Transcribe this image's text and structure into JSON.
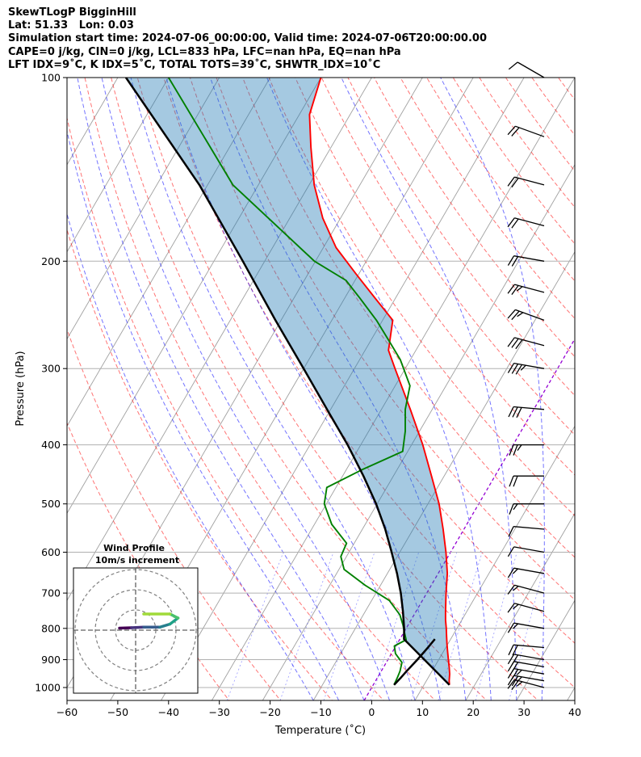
{
  "header": {
    "title": "SkewTLogP BigginHill",
    "location": "Lat: 51.33   Lon: 0.03",
    "times": "Simulation start time: 2024-07-06_00:00:00, Valid time: 2024-07-06T20:00:00.00",
    "indices1": "CAPE=0 j/kg, CIN=0 j/kg, LCL=833 hPa, LFC=nan hPa, EQ=nan hPa",
    "indices2": "LFT IDX=9˚C, K IDX=5˚C, TOTAL TOTS=39˚C, SHWTR_IDX=10˚C"
  },
  "chart_data": [
    {
      "type": "line",
      "title": "SkewTLogP BigginHill",
      "xlabel": "Temperature (˚C)",
      "ylabel": "Pressure (hPa)",
      "xlim": [
        -60,
        40
      ],
      "ylim": [
        1050,
        100
      ],
      "yscale": "log",
      "skew_deg_per_decade": 70,
      "xticks": [
        -60,
        -50,
        -40,
        -30,
        -20,
        -10,
        0,
        10,
        20,
        30,
        40
      ],
      "xtick_labels": [
        "−60",
        "−50",
        "−40",
        "−30",
        "−20",
        "−10",
        "0",
        "10",
        "20",
        "30",
        "40"
      ],
      "yticks": [
        1000,
        900,
        800,
        700,
        600,
        500,
        400,
        300,
        200,
        100
      ],
      "ytick_labels": [
        "1000",
        "900",
        "800",
        "700",
        "600",
        "500",
        "400",
        "300",
        "200",
        "100"
      ],
      "grid": true,
      "colors": {
        "temperature": "#ff0000",
        "dewpoint": "#008000",
        "parcel": "#000000",
        "cin_cape_fill": "#1f77b4",
        "dry_adiabat": "#ff0000",
        "moist_adiabat": "#0000ff",
        "mixing_ratio": "#0000ff",
        "isotherm_zero": "#9400d3",
        "skewed_isotherm": "#a0a0a0"
      },
      "series": [
        {
          "name": "Temperature",
          "p": [
            990,
            975,
            950,
            925,
            900,
            875,
            850,
            825,
            800,
            775,
            750,
            700,
            650,
            600,
            550,
            500,
            450,
            400,
            350,
            300,
            280,
            250,
            230,
            210,
            190,
            170,
            150,
            130,
            115,
            100
          ],
          "t": [
            15,
            14.5,
            13.8,
            12.9,
            11.9,
            10.9,
            9.9,
            8.9,
            7.9,
            6.8,
            5.8,
            3.8,
            1.8,
            -0.9,
            -4.1,
            -7.8,
            -12.5,
            -17.8,
            -24.3,
            -32.0,
            -35.4,
            -38,
            -44,
            -50.5,
            -57.5,
            -63.5,
            -69,
            -74,
            -78,
            -80
          ]
        },
        {
          "name": "Dewpoint",
          "p": [
            990,
            960,
            940,
            910,
            880,
            855,
            835,
            810,
            790,
            760,
            720,
            680,
            640,
            610,
            580,
            540,
            500,
            470,
            440,
            410,
            380,
            350,
            320,
            290,
            270,
            250,
            230,
            215,
            200,
            150,
            100
          ],
          "t": [
            4.1,
            3.9,
            3.7,
            3.1,
            0.8,
            -0.3,
            1.3,
            0.0,
            -1.0,
            -2.8,
            -6.5,
            -13,
            -19,
            -21.1,
            -21.5,
            -26.6,
            -30.4,
            -31.8,
            -27.0,
            -21.0,
            -22.8,
            -25.3,
            -27.1,
            -32.0,
            -36.4,
            -41.2,
            -47.0,
            -51.8,
            -60.2,
            -85,
            -110
          ]
        },
        {
          "name": "Parcel",
          "p": [
            990,
            833,
            800,
            750,
            700,
            650,
            600,
            550,
            500,
            450,
            400,
            350,
            300,
            250,
            200,
            150,
            100
          ],
          "t": [
            15.0,
            0.8,
            -0.4,
            -2.6,
            -5.1,
            -8.1,
            -11.6,
            -15.5,
            -20.2,
            -25.9,
            -32.6,
            -40.7,
            -50.0,
            -61.1,
            -74.3,
            -91.6,
            -118.4
          ]
        },
        {
          "name": "Surface parcel base",
          "p": [
            990,
            980,
            965,
            940,
            900,
            860,
            833
          ],
          "t": [
            4.1,
            4.3,
            4.6,
            5.0,
            5.8,
            6.5,
            6.9
          ]
        }
      ],
      "wind_barbs": {
        "p": [
          1000,
          975,
          950,
          925,
          900,
          860,
          800,
          750,
          700,
          650,
          600,
          550,
          500,
          450,
          400,
          350,
          300,
          275,
          250,
          225,
          200,
          175,
          150,
          125,
          100
        ],
        "speed_kt": [
          25,
          25,
          25,
          20,
          20,
          20,
          15,
          15,
          15,
          15,
          10,
          10,
          15,
          20,
          25,
          30,
          35,
          30,
          25,
          25,
          20,
          20,
          20,
          20,
          10
        ],
        "dir_deg": [
          285,
          280,
          280,
          280,
          280,
          275,
          280,
          285,
          285,
          280,
          280,
          275,
          270,
          270,
          270,
          275,
          280,
          285,
          290,
          285,
          280,
          285,
          285,
          290,
          300
        ]
      }
    },
    {
      "type": "scatter",
      "title": "Wind Profile",
      "subtitle": "10m/s increment",
      "rings_ms": [
        10,
        20,
        30
      ],
      "points": [
        {
          "u": -8,
          "v": 1,
          "c": "#440154"
        },
        {
          "u": -2,
          "v": 1.2,
          "c": "#46327e"
        },
        {
          "u": 4,
          "v": 1.5,
          "c": "#365c8d"
        },
        {
          "u": 12,
          "v": 1.5,
          "c": "#277f8e"
        },
        {
          "u": 17,
          "v": 3,
          "c": "#1fa187"
        },
        {
          "u": 21,
          "v": 6,
          "c": "#4ac16d"
        },
        {
          "u": 17,
          "v": 8,
          "c": "#a0da39"
        },
        {
          "u": 4,
          "v": 8,
          "c": "#fde725"
        }
      ]
    }
  ]
}
